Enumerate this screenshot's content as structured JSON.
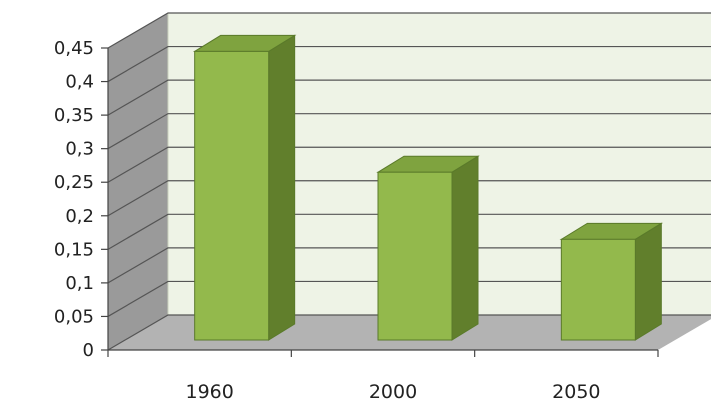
{
  "chart_data": {
    "type": "bar",
    "title": "",
    "xlabel": "",
    "ylabel": "",
    "categories": [
      "1960",
      "2000",
      "2050"
    ],
    "values": [
      0.43,
      0.25,
      0.15
    ],
    "ylim": [
      0,
      0.45
    ],
    "yticks": [
      0,
      0.05,
      0.1,
      0.15,
      0.2,
      0.25,
      0.3,
      0.35,
      0.4,
      0.45
    ],
    "ytick_labels": [
      "0",
      "0,05",
      "0,1",
      "0,15",
      "0,2",
      "0,25",
      "0,3",
      "0,35",
      "0,4",
      "0,45"
    ],
    "grid": true,
    "legend": "none",
    "three_d": true,
    "colors": {
      "bar_front": "#93b94c",
      "bar_top": "#7fa33f",
      "bar_side": "#617f2c",
      "bar_outline": "#5a7a2a",
      "back_wall": "#eef3e6",
      "side_wall": "#9a9a9a",
      "floor": "#b3b3b3",
      "gridline": "#555555"
    }
  }
}
